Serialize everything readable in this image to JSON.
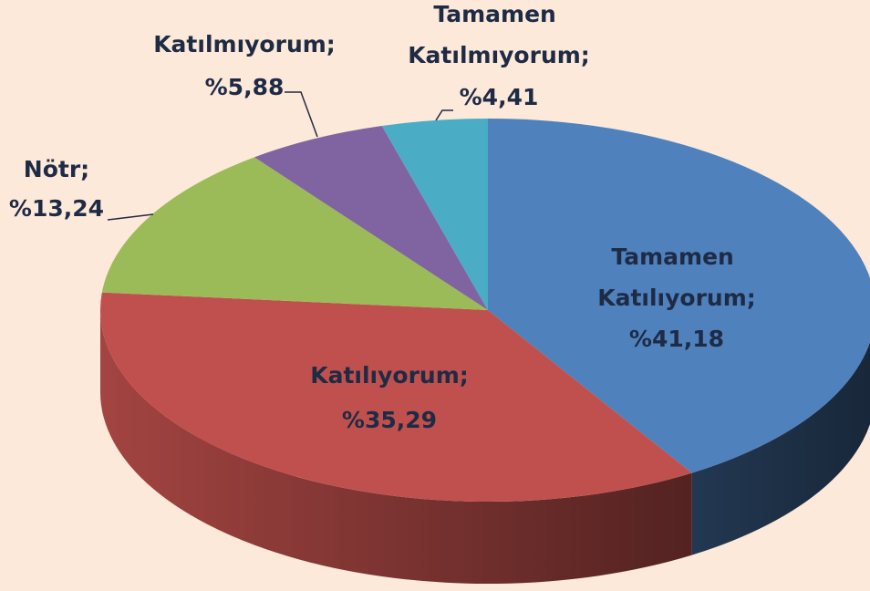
{
  "chart_data": {
    "type": "pie",
    "categories": [
      "Tamamen Katılıyorum;",
      "Katılıyorum;",
      "Nötr;",
      "Katılmıyorum;",
      "Tamamen Katılmıyorum;"
    ],
    "values": [
      41.18,
      35.29,
      13.24,
      5.88,
      4.41
    ],
    "value_labels": [
      "%41,18",
      "%35,29",
      "%13,24",
      "%5,88",
      "%4,41"
    ],
    "colors": [
      "#4f81bd",
      "#c0504d",
      "#9bbb59",
      "#8064a2",
      "#4bacc6"
    ]
  }
}
